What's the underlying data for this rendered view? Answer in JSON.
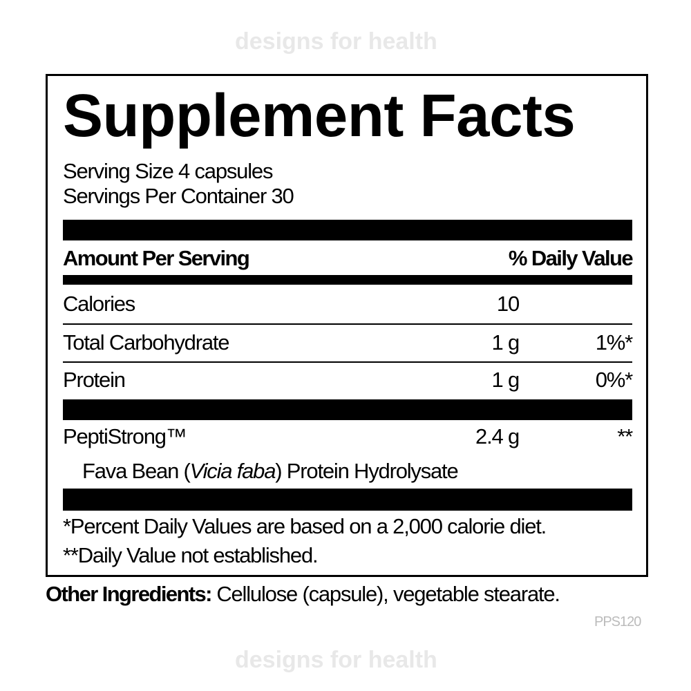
{
  "title": "Supplement Facts",
  "serving_size": "Serving Size 4 capsules",
  "servings_per_container": "Servings Per Container 30",
  "header": {
    "amount_label": "Amount Per Serving",
    "dv_label": "% Daily Value"
  },
  "rows": [
    {
      "name": "Calories",
      "amount": "10",
      "dv": ""
    },
    {
      "name": "Total Carbohydrate",
      "amount": "1 g",
      "dv": "1%*"
    },
    {
      "name": "Protein",
      "amount": "1 g",
      "dv": "0%*"
    }
  ],
  "blend": {
    "name": "PeptiStrong™",
    "amount": "2.4 g",
    "dv": "**",
    "sub_prefix": "Fava Bean (",
    "sub_italic": "Vicia faba",
    "sub_suffix": ") Protein Hydrolysate"
  },
  "footnotes": [
    "*Percent Daily Values are based on a 2,000 calorie diet.",
    "**Daily Value not established."
  ],
  "other_ingredients": {
    "label": "Other Ingredients:",
    "text": " Cellulose (capsule), vegetable stearate."
  },
  "code": "PPS120",
  "watermark": "designs for health"
}
